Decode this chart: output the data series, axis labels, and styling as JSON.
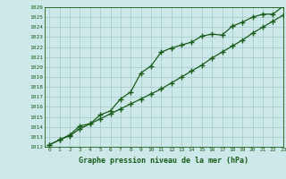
{
  "title": "Graphe pression niveau de la mer (hPa)",
  "background_color": "#cce8e8",
  "grid_color": "#aacccc",
  "line_color": "#1a5c1a",
  "marker_color": "#1a5c1a",
  "x_values": [
    0,
    1,
    2,
    3,
    4,
    5,
    6,
    7,
    8,
    9,
    10,
    11,
    12,
    13,
    14,
    15,
    16,
    17,
    18,
    19,
    20,
    21,
    22,
    23
  ],
  "line1_y": [
    1012.2,
    1012.7,
    1013.2,
    1014.1,
    1014.3,
    1015.2,
    1015.6,
    1016.8,
    1017.5,
    1019.4,
    1020.1,
    1021.5,
    1021.9,
    1022.2,
    1022.5,
    1023.1,
    1023.3,
    1023.2,
    1024.1,
    1024.5,
    1025.0,
    1025.3,
    1025.3,
    1026.1
  ],
  "line2_y": [
    1012.2,
    1012.7,
    1013.1,
    1013.8,
    1014.3,
    1014.8,
    1015.3,
    1015.8,
    1016.3,
    1016.8,
    1017.3,
    1017.8,
    1018.4,
    1019.0,
    1019.6,
    1020.2,
    1020.9,
    1021.5,
    1022.1,
    1022.7,
    1023.4,
    1024.0,
    1024.6,
    1025.2
  ],
  "ylim": [
    1012,
    1026
  ],
  "xlim": [
    -0.5,
    23
  ],
  "yticks": [
    1012,
    1013,
    1014,
    1015,
    1016,
    1017,
    1018,
    1019,
    1020,
    1021,
    1022,
    1023,
    1024,
    1025,
    1026
  ],
  "xticks": [
    0,
    1,
    2,
    3,
    4,
    5,
    6,
    7,
    8,
    9,
    10,
    11,
    12,
    13,
    14,
    15,
    16,
    17,
    18,
    19,
    20,
    21,
    22,
    23
  ]
}
